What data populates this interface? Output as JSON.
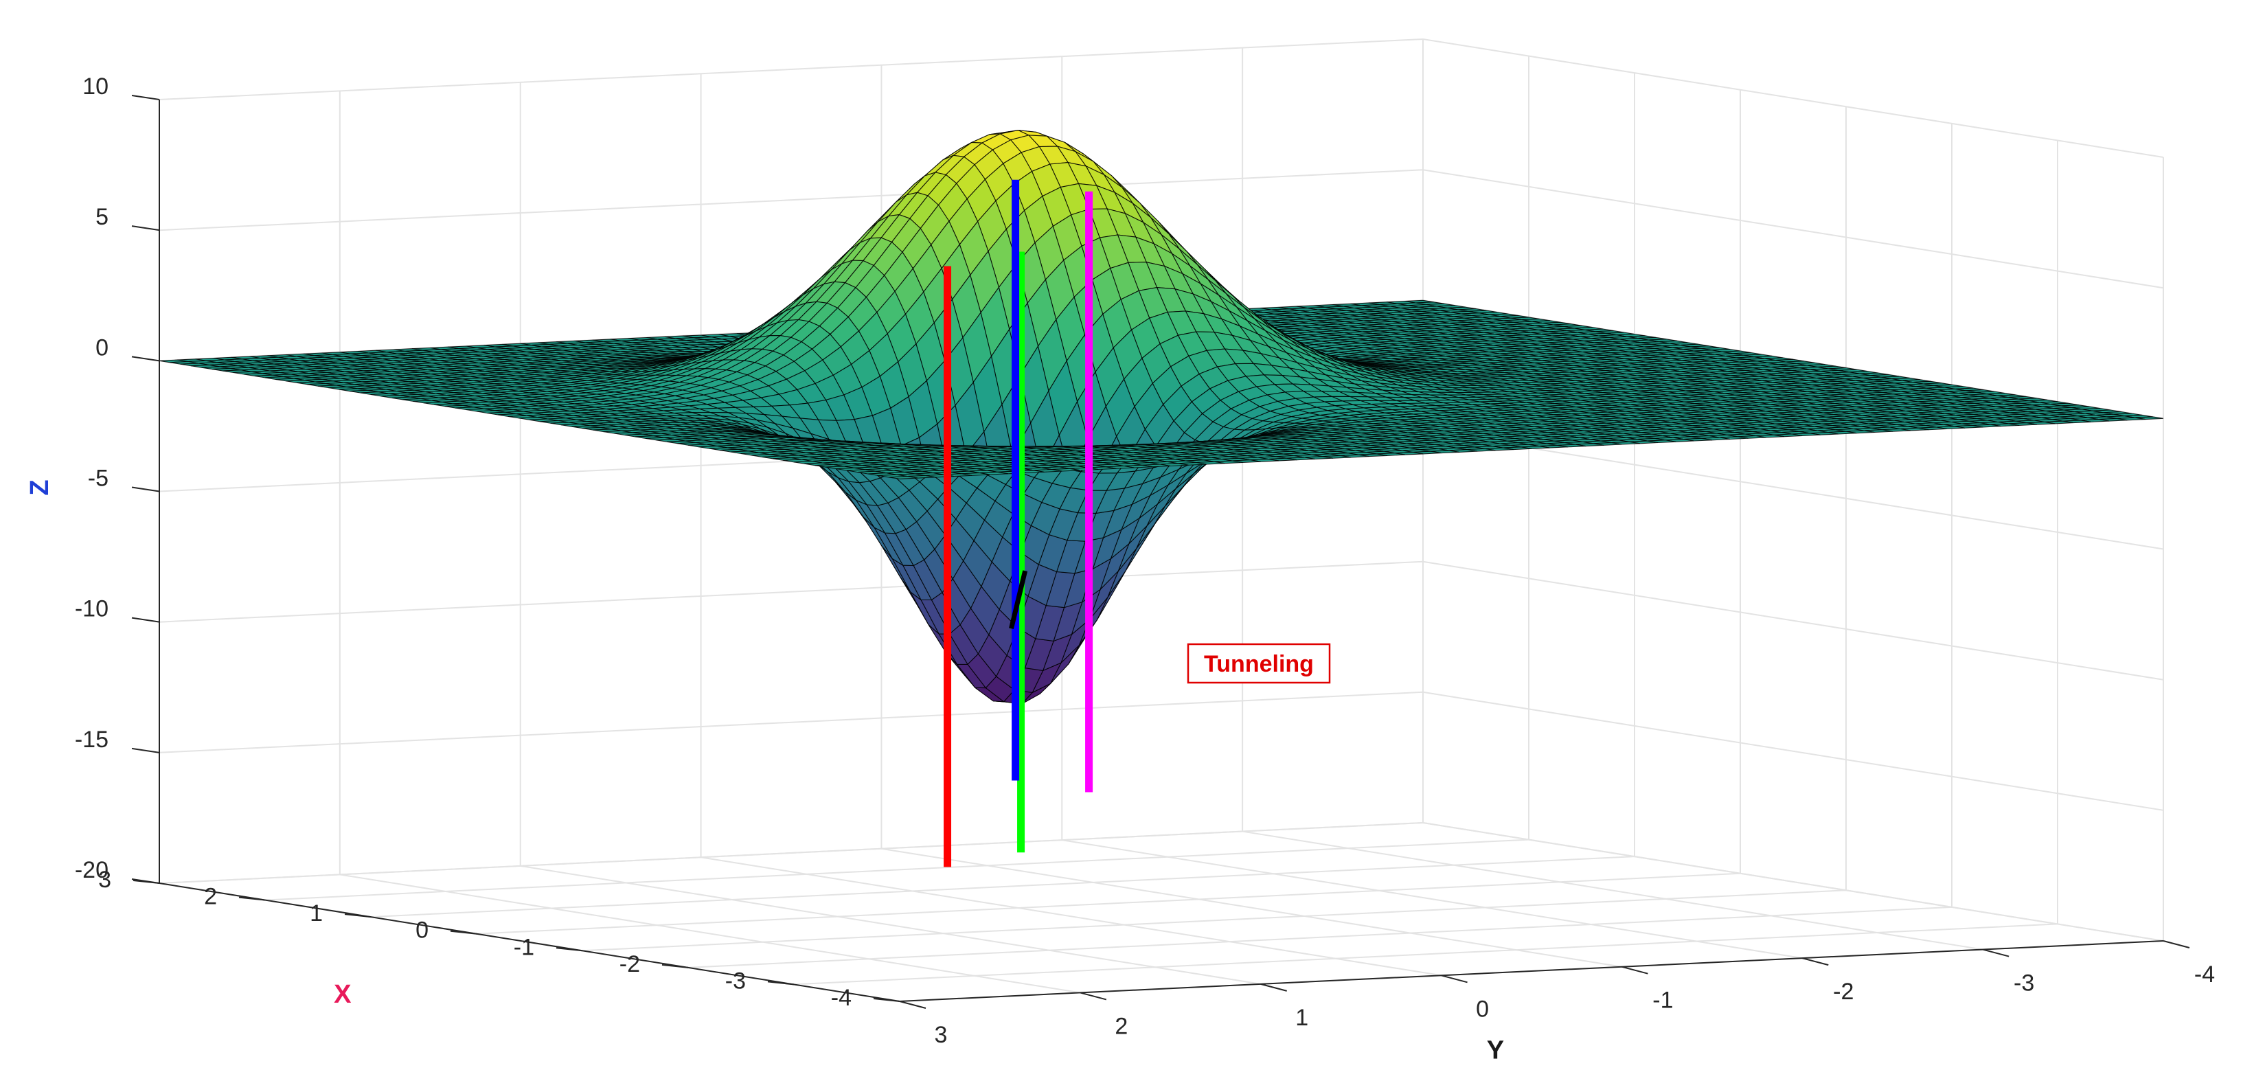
{
  "chart_data": {
    "type": "surface3d",
    "function": "z = 10*exp(-(x^2+y^2)) - 12*exp(-2*((x-1.3)^2+(y+0.8)^2)) - 12*exp(-2*((x+1.3)^2+(y-0.8)^2))",
    "x_range": [
      -4,
      3
    ],
    "y_range": [
      -4,
      3
    ],
    "zlim": [
      -20,
      10
    ],
    "x_ticks": [
      -4,
      -3,
      -2,
      -1,
      0,
      1,
      2,
      3
    ],
    "y_ticks": [
      -4,
      -3,
      -2,
      -1,
      0,
      1,
      2,
      3
    ],
    "z_ticks": [
      -20,
      -15,
      -10,
      -5,
      0,
      5,
      10
    ],
    "xlabel": "X",
    "ylabel": "Y",
    "zlabel": "Z",
    "xlabel_color": "#e8195a",
    "ylabel_color": "#1a1a1a",
    "zlabel_color": "#1f3fd6",
    "colormap": "viridis",
    "grid": true,
    "mesh_edge_color": "#000000",
    "vertical_lines": [
      {
        "color": "#ff0000",
        "x": -1.55,
        "y": 1.3,
        "z_range": [
          -17,
          6
        ]
      },
      {
        "color": "#00ff00",
        "x": -1.05,
        "y": 0.6,
        "z_range": [
          -17,
          6
        ]
      },
      {
        "color": "#0000ff",
        "x": 1.05,
        "y": -0.6,
        "z_range": [
          -16,
          7
        ]
      },
      {
        "color": "#ff00ff",
        "x": 1.55,
        "y": -1.3,
        "z_range": [
          -17,
          6
        ]
      }
    ],
    "tunnel_line": {
      "color": "#000000",
      "from": [
        -1.3,
        0.8,
        -8.2
      ],
      "to": [
        1.3,
        -0.8,
        -8.2
      ]
    },
    "annotation": {
      "text": "Tunneling",
      "color": "#e00000",
      "border_color": "#e00000"
    }
  }
}
